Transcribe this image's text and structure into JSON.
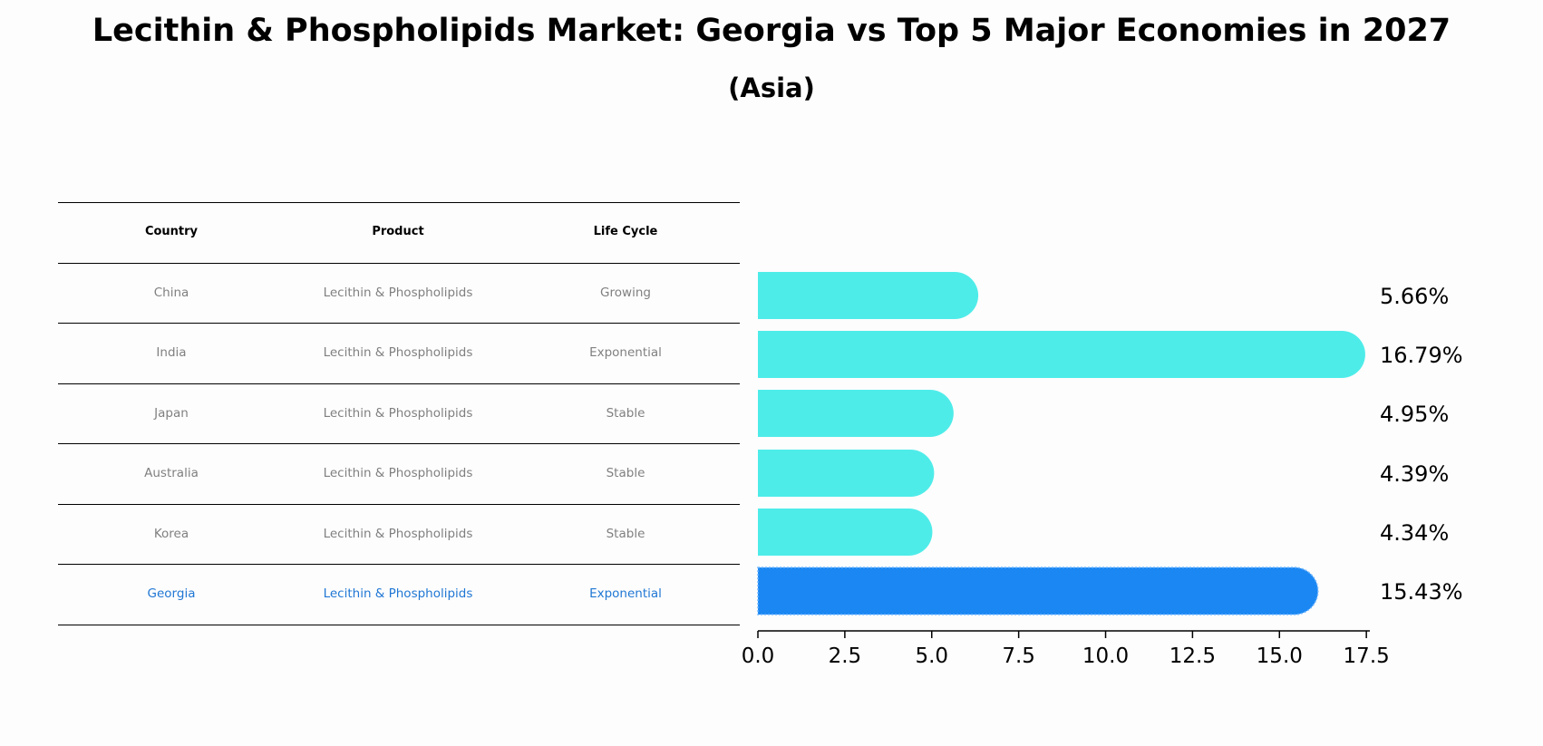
{
  "title": "Lecithin & Phospholipids Market: Georgia vs Top 5 Major Economies in 2027",
  "subtitle": "(Asia)",
  "table": {
    "headers": [
      "Country",
      "Product",
      "Life Cycle"
    ],
    "rows": [
      [
        "China",
        "Lecithin & Phospholipids",
        "Growing"
      ],
      [
        "India",
        "Lecithin & Phospholipids",
        "Exponential"
      ],
      [
        "Japan",
        "Lecithin & Phospholipids",
        "Stable"
      ],
      [
        "Australia",
        "Lecithin & Phospholipids",
        "Stable"
      ],
      [
        "Korea",
        "Lecithin & Phospholipids",
        "Stable"
      ],
      [
        "Georgia",
        "Lecithin & Phospholipids",
        "Exponential"
      ]
    ],
    "highlight_row": 5
  },
  "chart_data": {
    "type": "bar",
    "orientation": "horizontal",
    "categories": [
      "China",
      "India",
      "Japan",
      "Australia",
      "Korea",
      "Georgia"
    ],
    "values": [
      5.66,
      16.79,
      4.95,
      4.39,
      4.34,
      15.43
    ],
    "value_labels": [
      "5.66%",
      "16.79%",
      "4.95%",
      "4.39%",
      "4.34%",
      "15.43%"
    ],
    "xlim": [
      0,
      17.6
    ],
    "xticks": [
      "0.0",
      "2.5",
      "5.0",
      "7.5",
      "10.0",
      "12.5",
      "15.0",
      "17.5"
    ],
    "colors": {
      "default": "#4eece9",
      "highlight": "#1a87f3"
    },
    "grid": false,
    "legend": "none"
  }
}
